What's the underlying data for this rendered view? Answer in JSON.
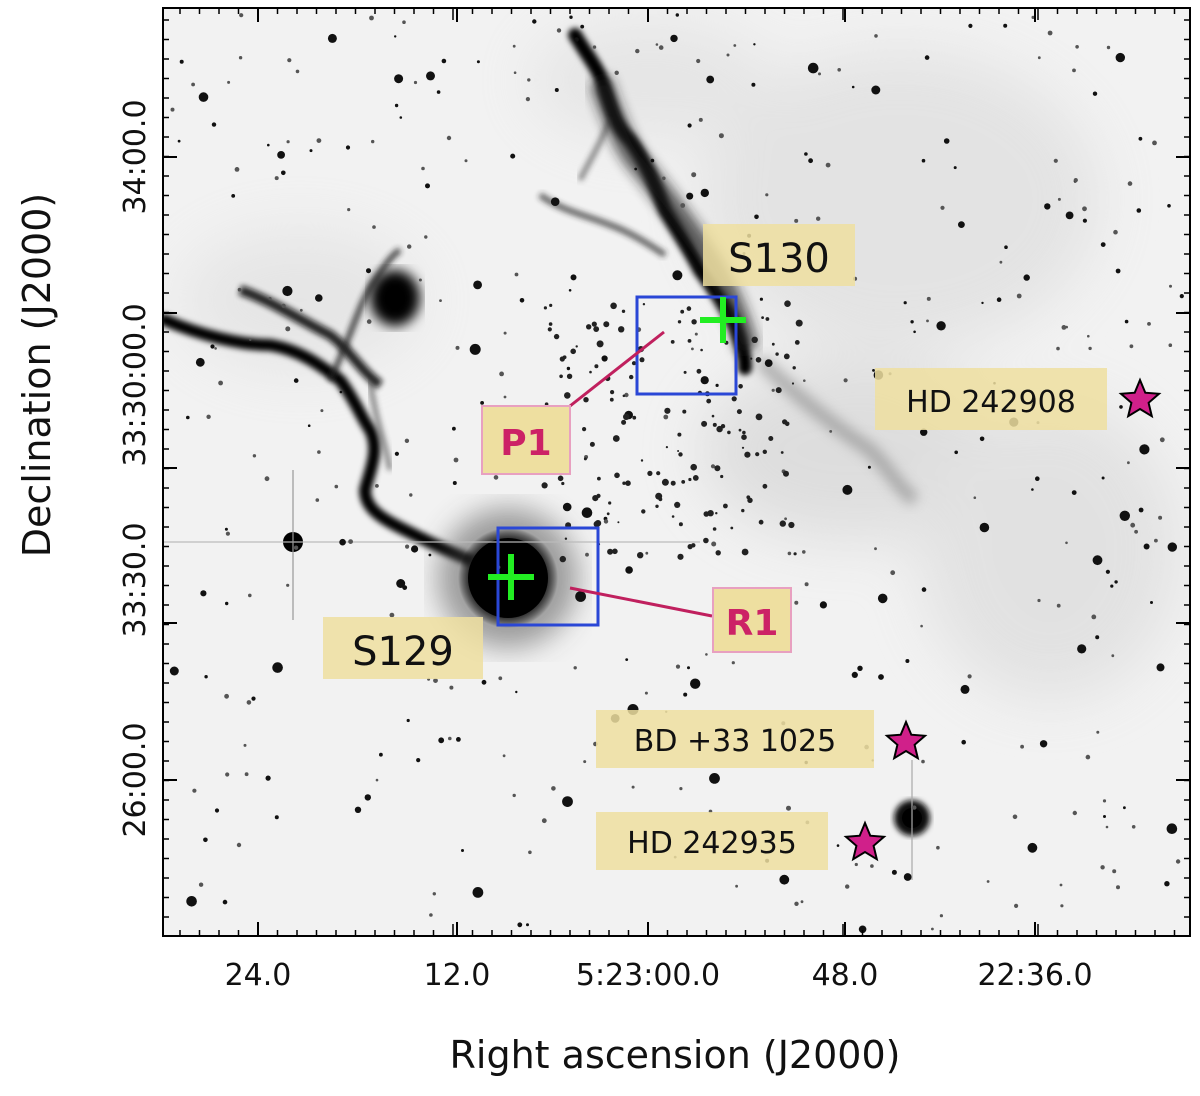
{
  "axes": {
    "x_title": "Right ascension",
    "x_title_suffix": "(J2000)",
    "y_title": "Declination",
    "y_title_suffix": "(J2000)",
    "x_ticks": [
      "24.0",
      "12.0",
      "5:23:00.0",
      "48.0",
      "22:36.0"
    ],
    "y_ticks": [
      "34:00.0",
      "33:30:00.0",
      "33:30.0",
      "26:00.0"
    ]
  },
  "labels": {
    "s130": "S130",
    "s129": "S129",
    "p1": "P1",
    "r1": "R1",
    "hd242908": "HD 242908",
    "bd33_1025": "BD +33 1025",
    "hd242935": "HD 242935"
  },
  "colors": {
    "box": "#2a47d6",
    "cross": "#22ee22",
    "star": "#d0208a",
    "pointer": "#c0205e",
    "label_bg": "#eedfa0",
    "tag_text": "#cc2266",
    "tag_border": "#e8a0c0"
  }
}
